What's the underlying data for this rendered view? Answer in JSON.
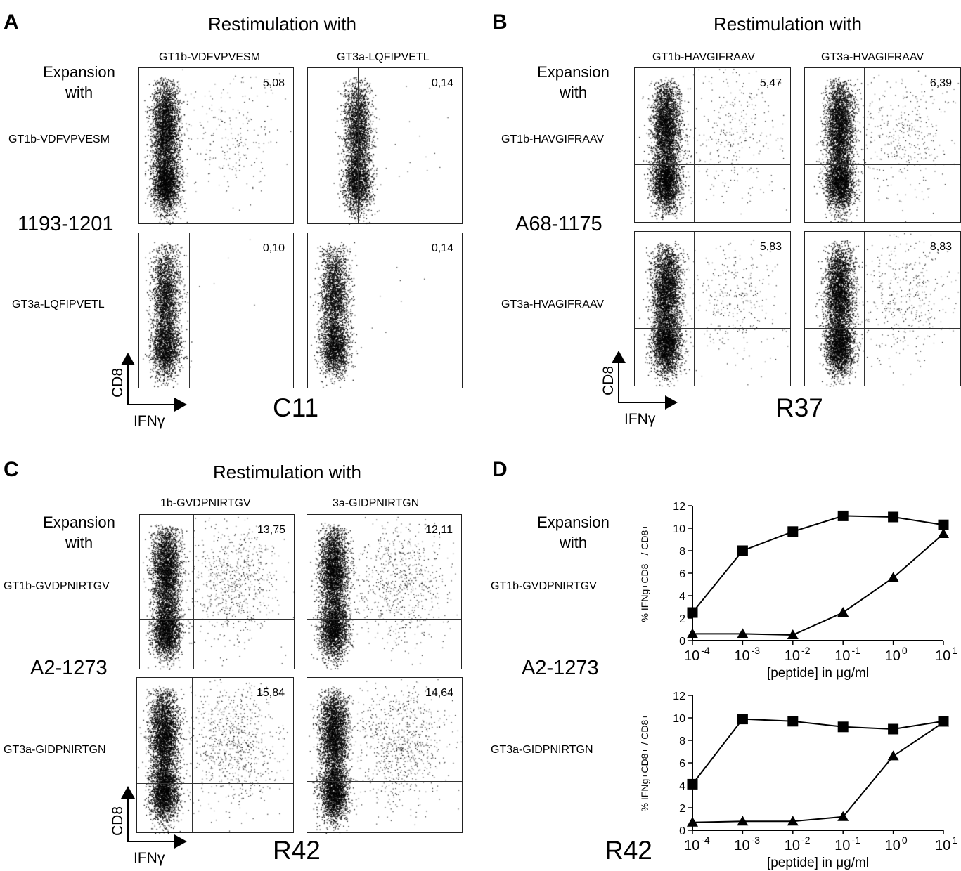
{
  "panels": [
    {
      "letter": "A",
      "restim_label": "Restimulation with",
      "expansion_label_1": "Expansion",
      "expansion_label_2": "with",
      "columns": [
        "GT1b-VDFVPVESM",
        "GT3a-LQFIPVETL"
      ],
      "rows": [
        "GT1b-VDFVPVESM",
        "GT3a-LQFIPVETL"
      ],
      "epitope": "1193-1201",
      "clone": "C11",
      "percentages": [
        [
          "5,08",
          "0,14"
        ],
        [
          "0,10",
          "0,14"
        ]
      ],
      "y_axis": "CD8",
      "x_axis": "IFNγ"
    },
    {
      "letter": "B",
      "restim_label": "Restimulation with",
      "expansion_label_1": "Expansion",
      "expansion_label_2": "with",
      "columns": [
        "GT1b-HAVGIFRAAV",
        "GT3a-HVAGIFRAAV"
      ],
      "rows": [
        "GT1b-HAVGIFRAAV",
        "GT3a-HVAGIFRAAV"
      ],
      "epitope": "A68-1175",
      "clone": "R37",
      "percentages": [
        [
          "5,47",
          "6,39"
        ],
        [
          "5,83",
          "8,83"
        ]
      ],
      "y_axis": "CD8",
      "x_axis": "IFNγ"
    },
    {
      "letter": "C",
      "restim_label": "Restimulation with",
      "expansion_label_1": "Expansion",
      "expansion_label_2": "with",
      "columns": [
        "1b-GVDPNIRTGV",
        "3a-GIDPNIRTGN"
      ],
      "rows": [
        "GT1b-GVDPNIRTGV",
        "GT3a-GIDPNIRTGN"
      ],
      "epitope": "A2-1273",
      "clone": "R42",
      "percentages": [
        [
          "13,75",
          "12,11"
        ],
        [
          "15,84",
          "14,64"
        ]
      ],
      "y_axis": "CD8",
      "x_axis": "IFNγ"
    }
  ],
  "panel_d": {
    "letter": "D",
    "expansion_label_1": "Expansion",
    "expansion_label_2": "with",
    "rows": [
      "GT1b-GVDPNIRTGV",
      "GT3a-GIDPNIRTGN"
    ],
    "epitope": "A2-1273",
    "clone": "R42"
  },
  "chart_data": [
    {
      "type": "line",
      "title": "",
      "xlabel": "[peptide] in μg/ml",
      "ylabel": "% IFNg+CD8+ / CD8+",
      "x": [
        0.0001,
        0.001,
        0.01,
        0.1,
        1,
        10
      ],
      "x_tick_labels": [
        "10-4",
        "10-3",
        "10-2",
        "10-1",
        "100",
        "101"
      ],
      "x_scale": "log",
      "ylim": [
        0,
        12
      ],
      "y_ticks": [
        0,
        2,
        4,
        6,
        8,
        10,
        12
      ],
      "series": [
        {
          "marker": "square",
          "values": [
            2.5,
            8.0,
            9.7,
            11.1,
            11.0,
            10.3
          ]
        },
        {
          "marker": "triangle",
          "values": [
            0.6,
            0.6,
            0.5,
            2.5,
            5.6,
            9.5
          ]
        }
      ]
    },
    {
      "type": "line",
      "title": "",
      "xlabel": "[peptide] in μg/ml",
      "ylabel": "% IFNg+CD8+ / CD8+",
      "x": [
        0.0001,
        0.001,
        0.01,
        0.1,
        1,
        10
      ],
      "x_tick_labels": [
        "10-4",
        "10-3",
        "10-2",
        "10-1",
        "100",
        "101"
      ],
      "x_scale": "log",
      "ylim": [
        0,
        12
      ],
      "y_ticks": [
        0,
        2,
        4,
        6,
        8,
        10,
        12
      ],
      "series": [
        {
          "marker": "square",
          "values": [
            4.1,
            9.9,
            9.7,
            9.2,
            9.0,
            9.7
          ]
        },
        {
          "marker": "triangle",
          "values": [
            0.7,
            0.8,
            0.8,
            1.2,
            6.6,
            9.6
          ]
        }
      ]
    }
  ]
}
